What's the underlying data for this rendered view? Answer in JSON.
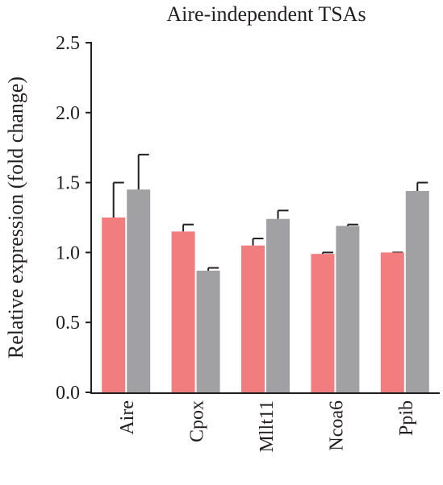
{
  "chart_data": {
    "type": "bar",
    "title": "Aire-independent TSAs",
    "y_label": "Relative expression (fold change)",
    "categories": [
      "Aire",
      "Cpox",
      "Mllt11",
      "Ncoa6",
      "Ppib"
    ],
    "series": [
      {
        "color": "#f17d7f",
        "values": [
          1.25,
          1.15,
          1.05,
          0.99,
          1.0
        ],
        "errors": [
          0.25,
          0.05,
          0.05,
          0.01,
          0.0
        ]
      },
      {
        "color": "#a1a1a4",
        "values": [
          1.45,
          0.87,
          1.24,
          1.19,
          1.44
        ],
        "errors": [
          0.25,
          0.02,
          0.06,
          0.01,
          0.06
        ]
      }
    ],
    "ylim": [
      0,
      2.5
    ],
    "yticks": [
      {
        "value": 0,
        "label": "0.0"
      },
      0.5,
      {
        "value": 1,
        "label": "1.0"
      },
      1.5,
      {
        "value": 2,
        "label": "2.0"
      },
      2.5
    ]
  }
}
